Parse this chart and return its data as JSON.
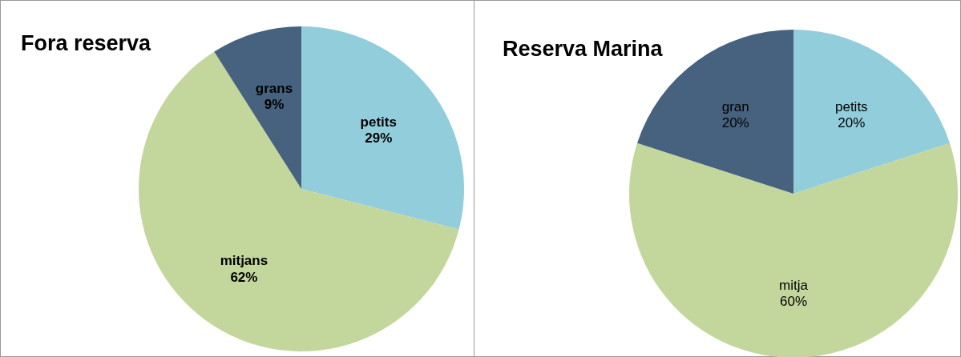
{
  "chart_data": [
    {
      "type": "pie",
      "title": "Fora reserva",
      "categories": [
        "petits",
        "mitjans",
        "grans"
      ],
      "values": [
        29,
        62,
        9
      ],
      "value_labels": [
        "29%",
        "62%",
        "9%"
      ],
      "colors": [
        "#92cddc",
        "#c3d69b",
        "#46627f"
      ],
      "legend": false
    },
    {
      "type": "pie",
      "title": "Reserva Marina",
      "categories": [
        "petits",
        "mitja",
        "gran"
      ],
      "values": [
        20,
        60,
        20
      ],
      "value_labels": [
        "20%",
        "60%",
        "20%"
      ],
      "colors": [
        "#92cddc",
        "#c3d69b",
        "#46627f"
      ],
      "legend": false
    }
  ]
}
